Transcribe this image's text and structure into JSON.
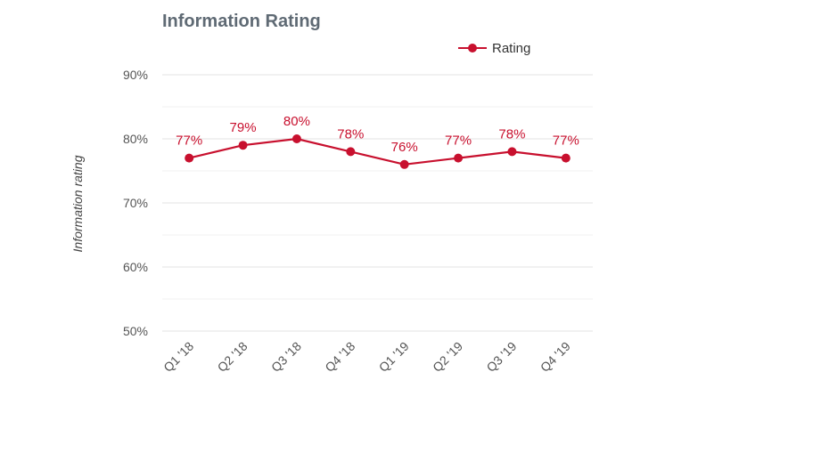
{
  "chart_data": {
    "type": "line",
    "title": "Information Rating",
    "ylabel": "Information rating",
    "xlabel": "",
    "categories": [
      "Q1 '18",
      "Q2 '18",
      "Q3 '18",
      "Q4 '18",
      "Q1 '19",
      "Q2 '19",
      "Q3 '19",
      "Q4 '19"
    ],
    "series": [
      {
        "name": "Rating",
        "values": [
          77,
          79,
          80,
          78,
          76,
          77,
          78,
          77
        ],
        "color": "#c8102e"
      }
    ],
    "data_labels": [
      "77%",
      "79%",
      "80%",
      "78%",
      "76%",
      "77%",
      "78%",
      "77%"
    ],
    "ylim": [
      50,
      90
    ],
    "yticks": [
      50,
      60,
      70,
      80,
      90
    ],
    "ytick_labels": [
      "50%",
      "60%",
      "70%",
      "80%",
      "90%"
    ],
    "grid": true,
    "legend_position": "top-right"
  }
}
